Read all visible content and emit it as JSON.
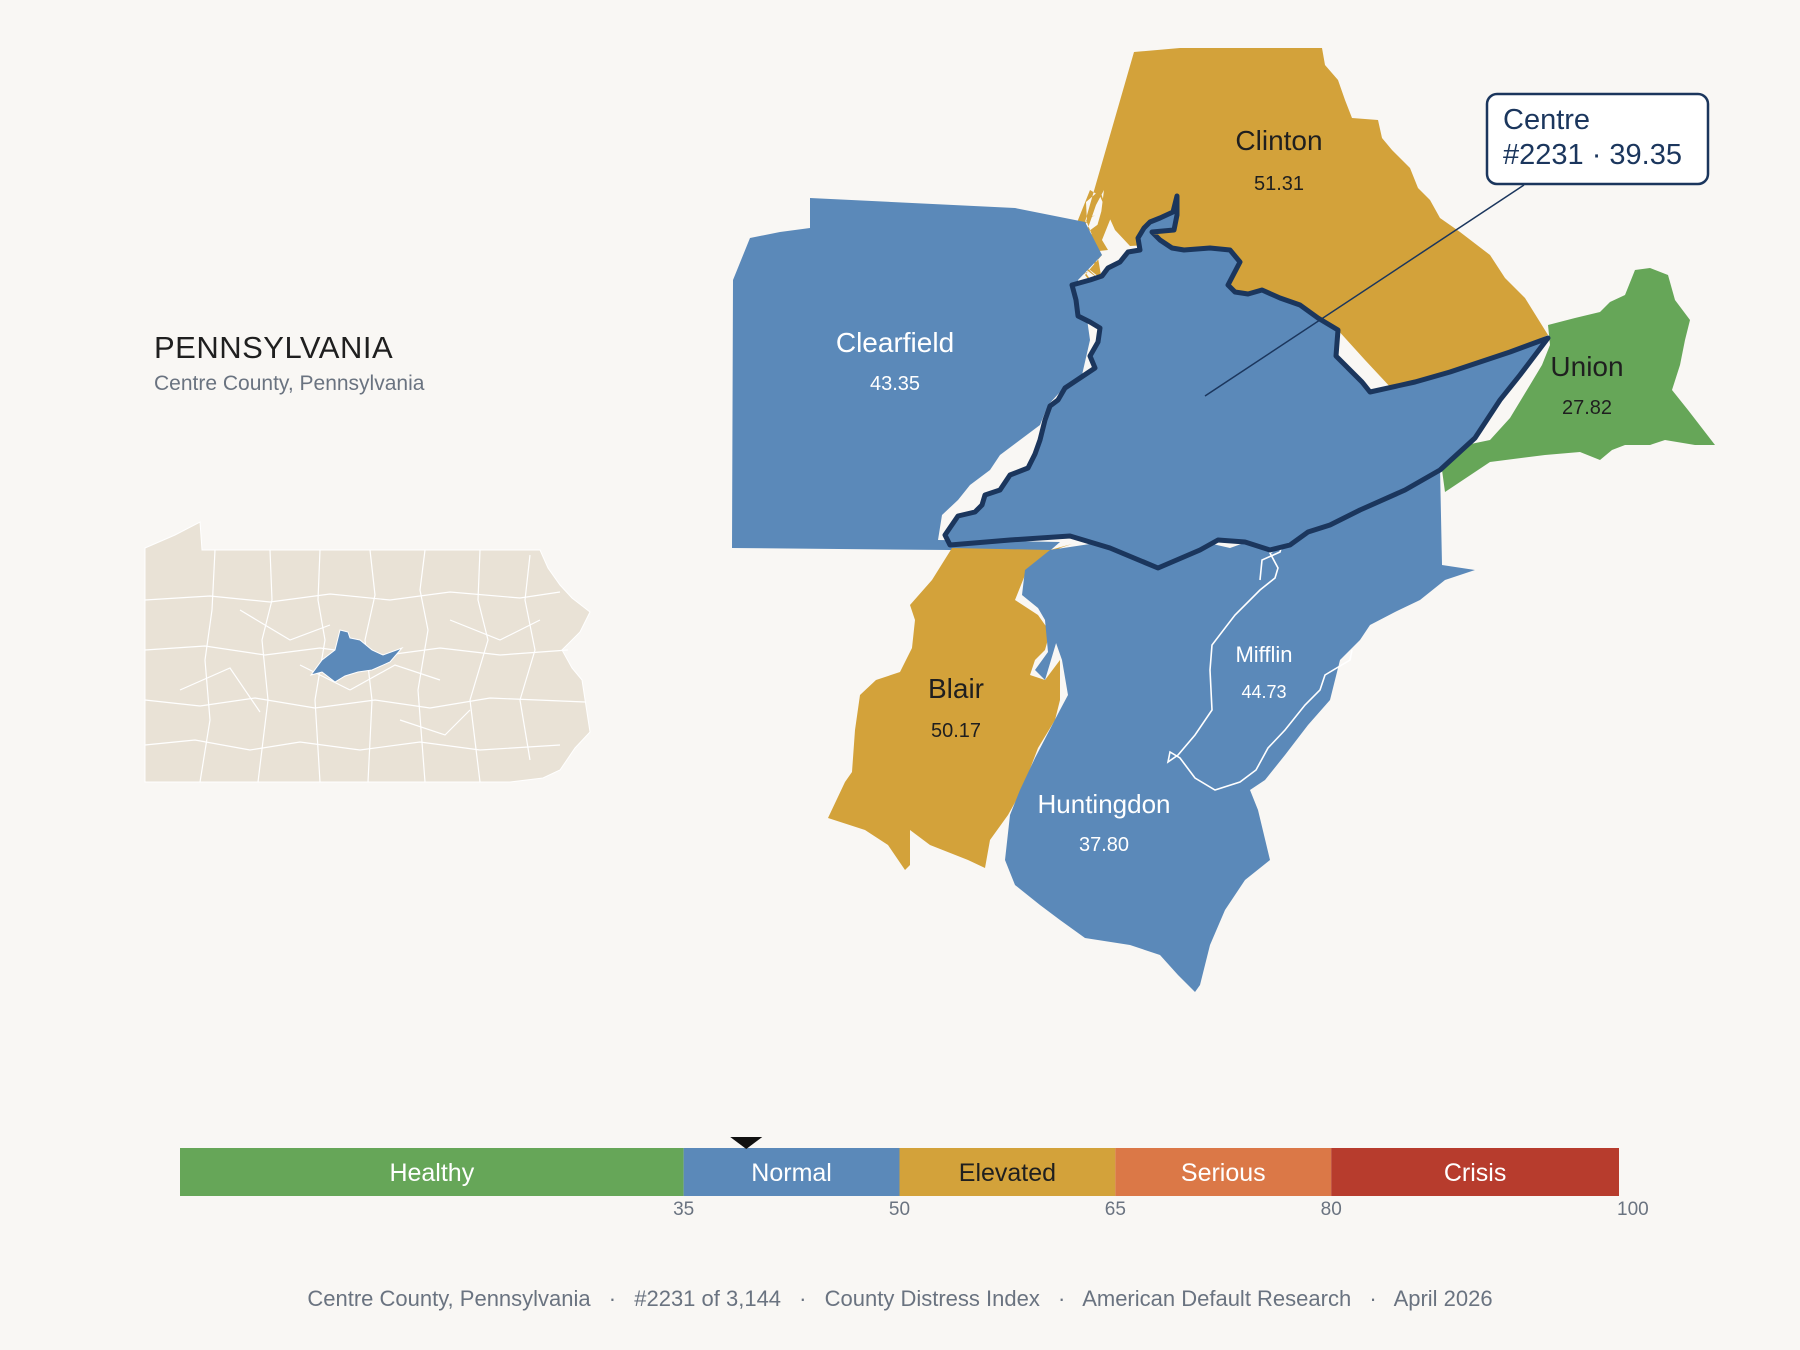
{
  "header": {
    "state_name": "PENNSYLVANIA",
    "subtitle": "Centre County, Pennsylvania"
  },
  "colors": {
    "background": "#f9f7f4",
    "healthy": "#66a658",
    "normal": "#5b89b9",
    "elevated": "#d3a23a",
    "serious": "#db7847",
    "crisis": "#b73c2d",
    "highlight_outline": "#1b365d",
    "inset_fill": "#e9e2d6"
  },
  "inset_map": {
    "selected_county": "Centre"
  },
  "counties": [
    {
      "name": "Clinton",
      "value": "51.31",
      "category": "elevated"
    },
    {
      "name": "Clearfield",
      "value": "43.35",
      "category": "normal"
    },
    {
      "name": "Union",
      "value": "27.82",
      "category": "healthy"
    },
    {
      "name": "Blair",
      "value": "50.17",
      "category": "elevated"
    },
    {
      "name": "Mifflin",
      "value": "44.73",
      "category": "normal"
    },
    {
      "name": "Huntingdon",
      "value": "37.80",
      "category": "normal"
    },
    {
      "name": "Centre",
      "value": "39.35",
      "category": "normal",
      "selected": true
    }
  ],
  "callout": {
    "line1": "Centre",
    "line2": "#2231 · 39.35"
  },
  "legend": {
    "bands": [
      {
        "label": "Healthy",
        "from": 0,
        "to": 35,
        "color": "#66a658"
      },
      {
        "label": "Normal",
        "from": 35,
        "to": 50,
        "color": "#5b89b9"
      },
      {
        "label": "Elevated",
        "from": 50,
        "to": 65,
        "color": "#d3a23a"
      },
      {
        "label": "Serious",
        "from": 65,
        "to": 80,
        "color": "#db7847"
      },
      {
        "label": "Crisis",
        "from": 80,
        "to": 100,
        "color": "#b73c2d"
      }
    ],
    "ticks": [
      "35",
      "50",
      "65",
      "80",
      "100"
    ],
    "marker_value": 39.35
  },
  "footer": {
    "county": "Centre County, Pennsylvania",
    "rank": "#2231 of 3,144",
    "index": "County Distress Index",
    "org": "American Default Research",
    "date": "April 2026",
    "separator": "·"
  }
}
